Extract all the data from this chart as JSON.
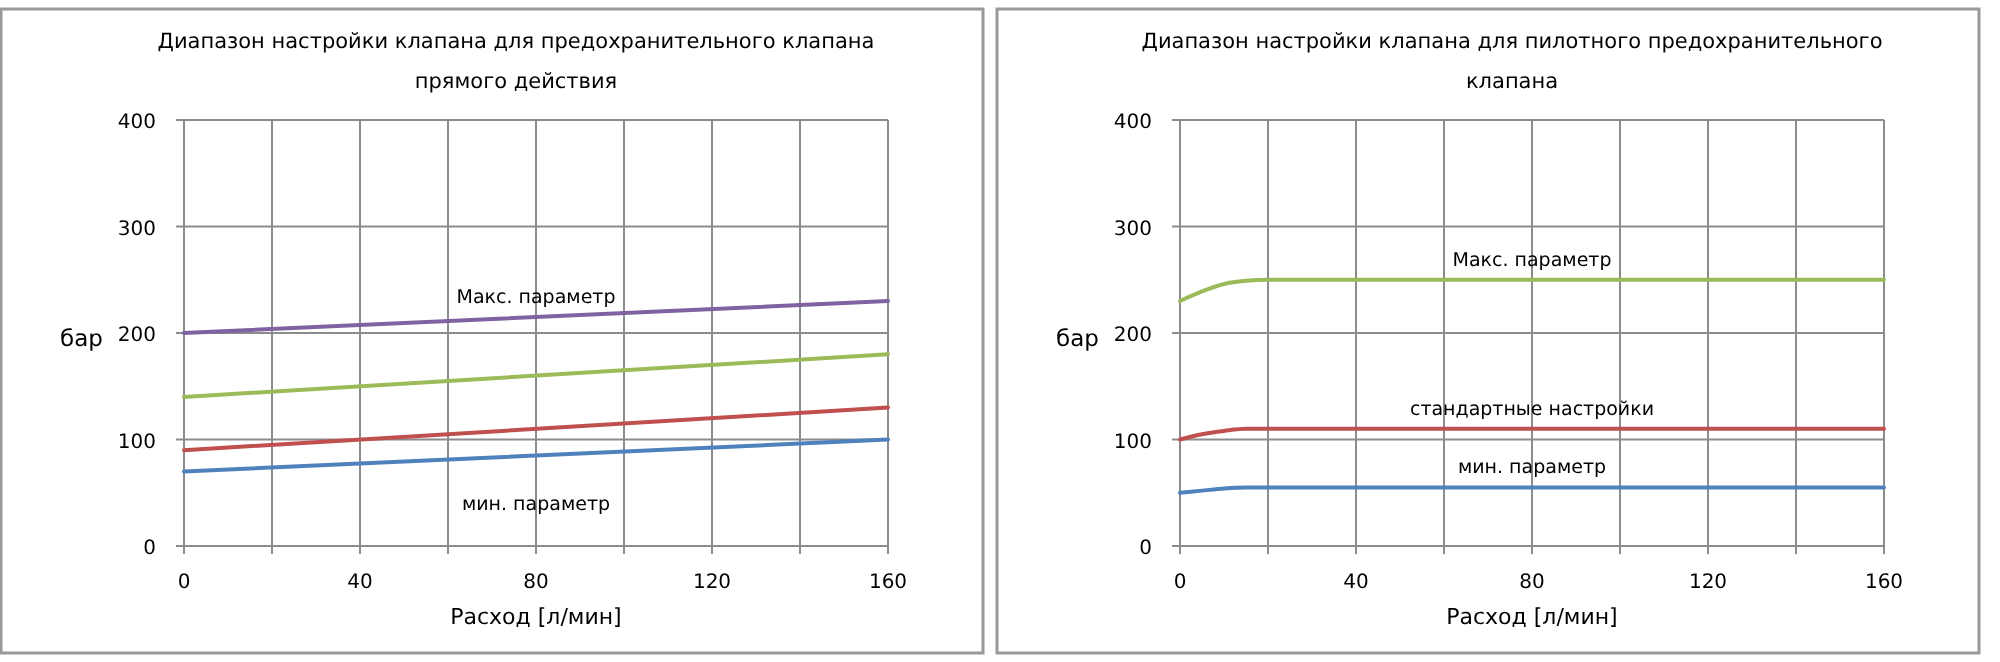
{
  "chart_data": [
    {
      "type": "line",
      "title": "Диапазон настройки клапана для предохранительного клапана прямого действия",
      "xlabel": "Расход [л/мин]",
      "ylabel": "бар",
      "xlim": [
        0,
        160
      ],
      "ylim": [
        0,
        400
      ],
      "xticks": [
        0,
        {
          "value": 20,
          "label": null
        },
        40,
        {
          "value": 60,
          "label": null
        },
        80,
        {
          "value": 100,
          "label": null
        },
        120,
        {
          "value": 140,
          "label": null
        },
        160
      ],
      "yticks": [
        0,
        100,
        200,
        300,
        400
      ],
      "grid": true,
      "marker": "none",
      "line_style": "solid",
      "x": [
        0,
        160
      ],
      "series": [
        {
          "color": "#7f63a1",
          "values": [
            200,
            230
          ]
        },
        {
          "color": "#9bbb59",
          "values": [
            140,
            180
          ]
        },
        {
          "color": "#c0504d",
          "values": [
            90,
            130
          ]
        },
        {
          "color": "#4f81bd",
          "values": [
            70,
            100
          ]
        }
      ],
      "annotations": [
        {
          "text": "Макс. параметр",
          "y": 215
        },
        "мин. параметр"
      ]
    },
    {
      "type": "line",
      "title": "Диапазон настройки клапана для пилотного предохранительного клапана",
      "xlabel": "Расход [л/мин]",
      "ylabel": "бар",
      "xlim": [
        0,
        160
      ],
      "ylim": [
        0,
        400
      ],
      "xticks": [
        0,
        {
          "value": 20,
          "label": null
        },
        40,
        {
          "value": 60,
          "label": null
        },
        80,
        {
          "value": 100,
          "label": null
        },
        120,
        {
          "value": 140,
          "label": null
        },
        160
      ],
      "yticks": [
        0,
        100,
        200,
        300,
        400
      ],
      "grid": true,
      "marker": "none",
      "line_style": "solid",
      "x": [
        0,
        5,
        10,
        15,
        20,
        160
      ],
      "series": [
        {
          "color": "#9bbb59",
          "values": [
            230,
            239,
            246,
            249,
            250,
            250
          ]
        },
        {
          "color": "#c0504d",
          "values": [
            100,
            105,
            108,
            110,
            110,
            110
          ]
        },
        {
          "color": "#4f81bd",
          "values": [
            50,
            52,
            54,
            55,
            55,
            55
          ]
        }
      ],
      "annotations": [
        {
          "text": "Макс. параметр",
          "y": 250
        },
        {
          "text": "стандартные настройки",
          "y": 110
        },
        {
          "text": "мин. параметр",
          "y": 55
        }
      ]
    }
  ]
}
